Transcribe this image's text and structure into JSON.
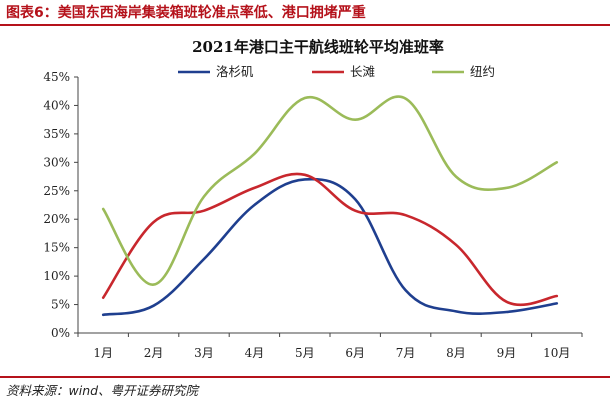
{
  "figure_title": "图表6：美国东西海岸集装箱班轮准点率低、港口拥堵严重",
  "source": "资料来源：wind、粤开证券研究院",
  "colors": {
    "accent": "#b5121b",
    "series_la": "#1f3f8f",
    "series_lb": "#c8272d",
    "series_ny": "#9bbb59"
  },
  "chart_data": {
    "type": "line",
    "title": "2021年港口主干航线班轮平均准班率",
    "xlabel": "",
    "ylabel": "",
    "ylim": [
      0,
      45
    ],
    "y_ticks": [
      "0%",
      "5%",
      "10%",
      "15%",
      "20%",
      "25%",
      "30%",
      "35%",
      "40%",
      "45%"
    ],
    "categories": [
      "1月",
      "2月",
      "3月",
      "4月",
      "5月",
      "6月",
      "7月",
      "8月",
      "9月",
      "10月"
    ],
    "legend_position": "top",
    "series": [
      {
        "name": "洛杉矶",
        "color": "#1f3f8f",
        "values": [
          3.2,
          4.8,
          13,
          22.5,
          27,
          23.5,
          7.5,
          3.8,
          3.7,
          5.2
        ]
      },
      {
        "name": "长滩",
        "color": "#c8272d",
        "values": [
          6.2,
          19.5,
          21.5,
          25.5,
          27.8,
          21.5,
          20.7,
          15.5,
          5.5,
          6.5
        ]
      },
      {
        "name": "纽约",
        "color": "#9bbb59",
        "values": [
          21.8,
          8.5,
          24,
          31.5,
          41.3,
          37.5,
          41.2,
          27.5,
          25.5,
          30
        ]
      }
    ]
  }
}
